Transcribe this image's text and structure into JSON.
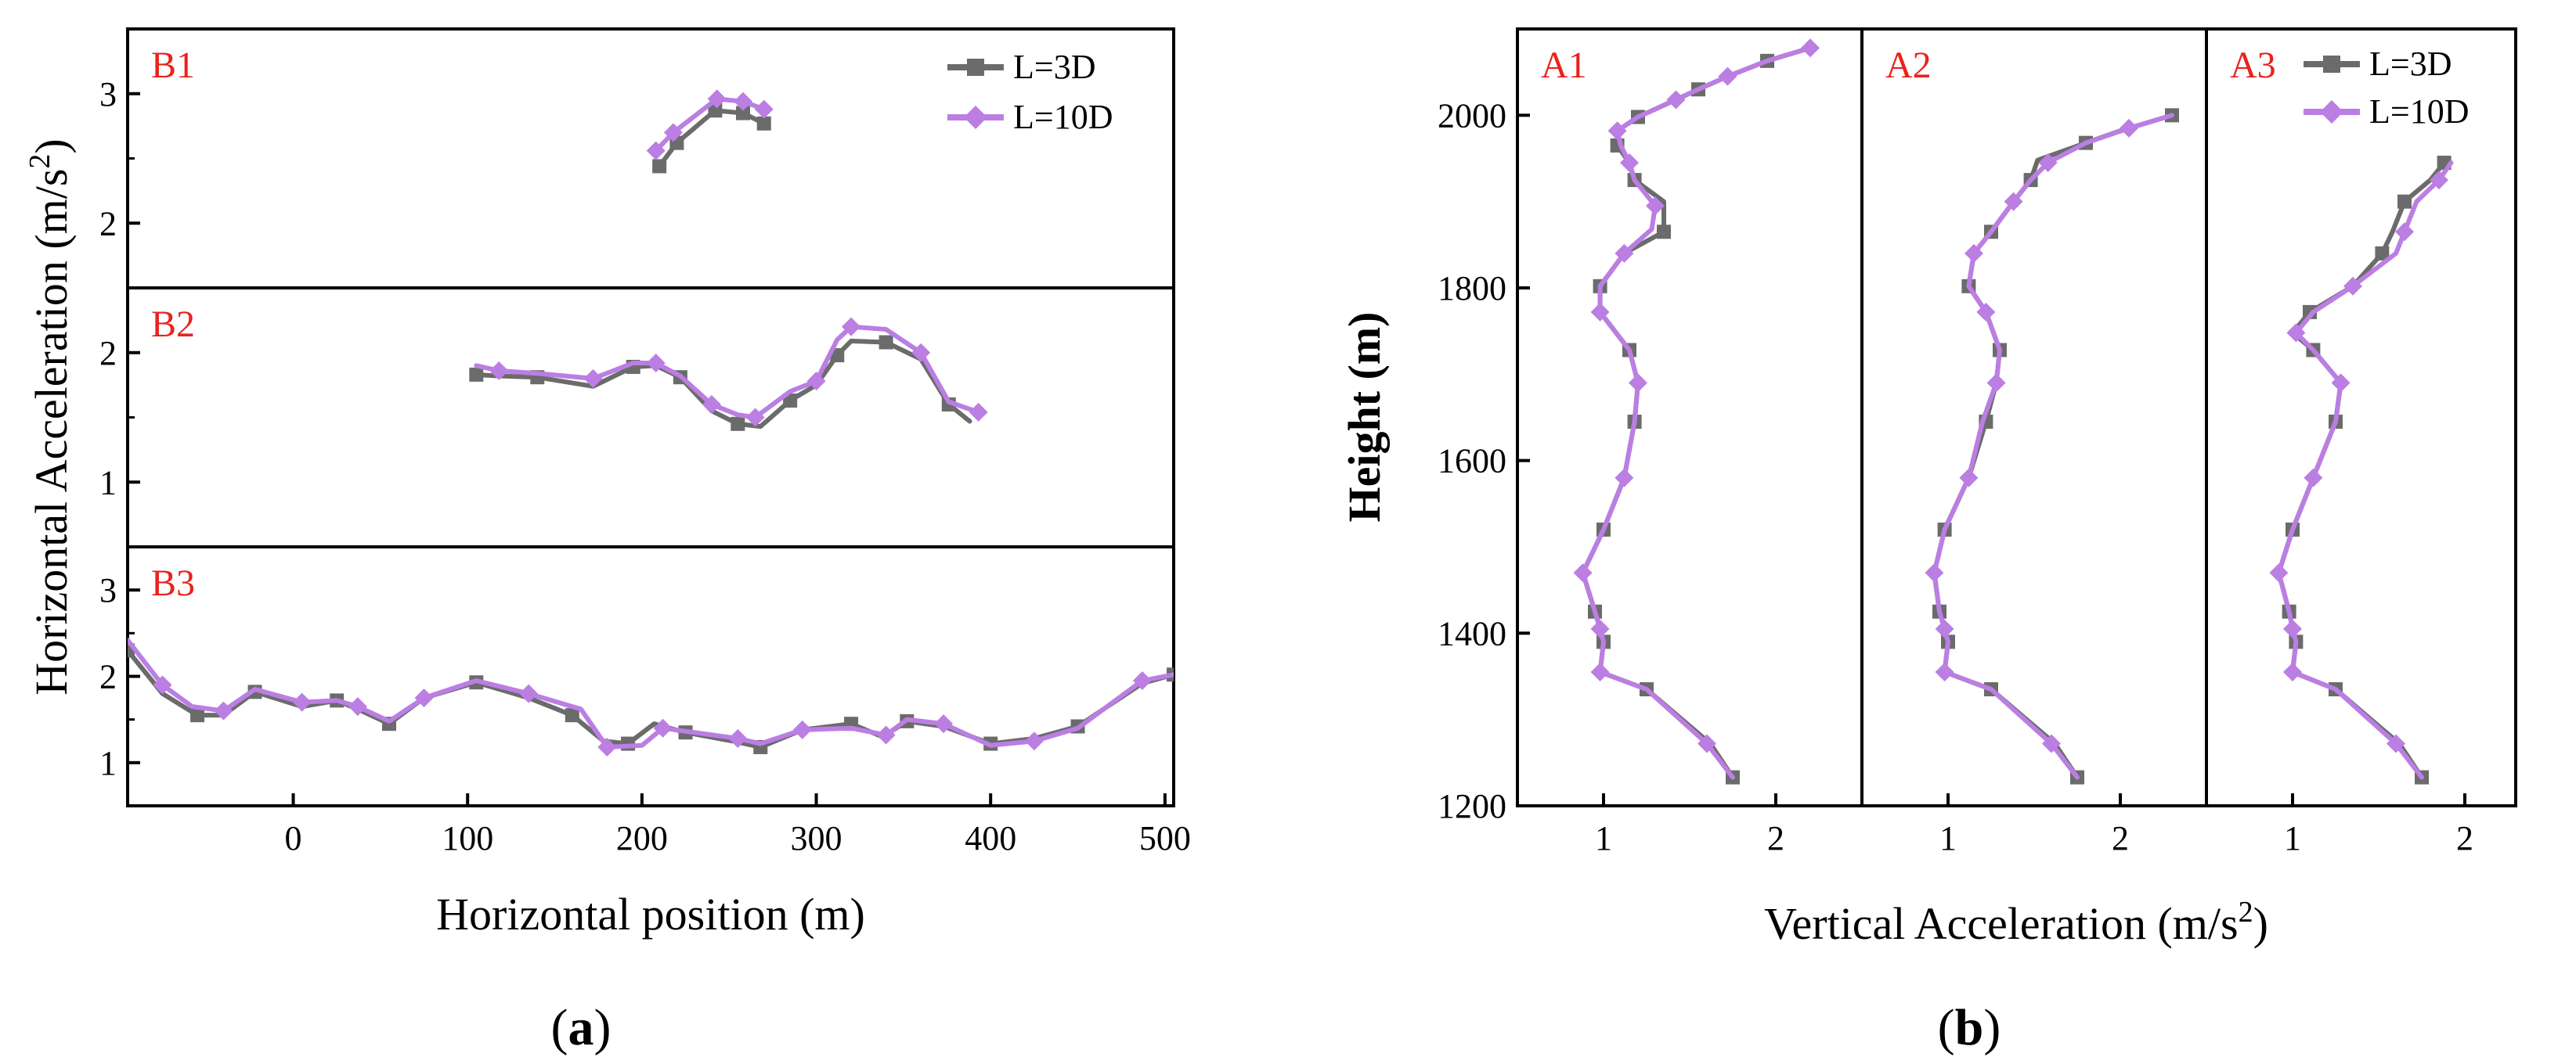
{
  "colors": {
    "l3d": "#6b6b6b",
    "l10d": "#bb7ee3",
    "panel_label": "#e8231c",
    "axis": "#000000"
  },
  "panel_a": {
    "caption": "a",
    "xlabel": "Horizontal position (m)",
    "ylabel_main": "Horizontal Acceleration (m/s",
    "ylabel_sup": "2",
    "ylabel_close": ")"
  },
  "panel_b": {
    "caption": "b",
    "ylabel": "Height (m)",
    "xlabel_main": "Vertical Acceleration (m/s",
    "xlabel_sup": "2",
    "xlabel_close": ")"
  },
  "legend": {
    "l3d": "L=3D",
    "l10d": "L=10D"
  },
  "chart_data": [
    {
      "id": "B1",
      "type": "line",
      "label": "B1",
      "xlim": [
        -95,
        505
      ],
      "ylim": [
        1.5,
        3.5
      ],
      "xticks": [],
      "yticks": [
        2,
        3
      ],
      "legend_position": "top-right",
      "series": [
        {
          "name": "L=3D",
          "x": [
            210,
            220,
            242,
            258,
            270
          ],
          "y": [
            2.44,
            2.62,
            2.87,
            2.85,
            2.77
          ]
        },
        {
          "name": "L=10D",
          "x": [
            208,
            218,
            243,
            258,
            270
          ],
          "y": [
            2.56,
            2.7,
            2.96,
            2.94,
            2.88
          ]
        }
      ]
    },
    {
      "id": "B2",
      "type": "line",
      "label": "B2",
      "xlim": [
        -95,
        505
      ],
      "ylim": [
        0.5,
        2.5
      ],
      "xticks": [],
      "yticks": [
        1,
        2
      ],
      "series": [
        {
          "name": "L=3D",
          "x": [
            105,
            118,
            140,
            172,
            195,
            208,
            222,
            240,
            255,
            268,
            285,
            300,
            312,
            320,
            340,
            360,
            376,
            388
          ],
          "y": [
            1.83,
            1.82,
            1.81,
            1.74,
            1.89,
            1.9,
            1.81,
            1.55,
            1.45,
            1.43,
            1.63,
            1.75,
            1.98,
            2.09,
            2.08,
            1.95,
            1.6,
            1.47
          ]
        },
        {
          "name": "L=10D",
          "x": [
            105,
            118,
            140,
            172,
            195,
            208,
            222,
            240,
            255,
            265,
            285,
            300,
            312,
            320,
            340,
            360,
            376,
            393
          ],
          "y": [
            1.9,
            1.86,
            1.84,
            1.8,
            1.92,
            1.92,
            1.82,
            1.6,
            1.52,
            1.5,
            1.7,
            1.78,
            2.1,
            2.2,
            2.18,
            2.0,
            1.62,
            1.54
          ]
        }
      ]
    },
    {
      "id": "B3",
      "type": "line",
      "label": "B3",
      "xlim": [
        -95,
        505
      ],
      "ylim": [
        0.5,
        3.5
      ],
      "xticks": [
        0,
        100,
        200,
        300,
        400,
        500
      ],
      "yticks": [
        1,
        2,
        3
      ],
      "series": [
        {
          "name": "L=3D",
          "x": [
            -95,
            -75,
            -55,
            -40,
            -22,
            5,
            25,
            37,
            55,
            75,
            105,
            135,
            160,
            178,
            192,
            207,
            225,
            252,
            268,
            292,
            320,
            338,
            352,
            373,
            400,
            425,
            450,
            487,
            505
          ],
          "y": [
            2.3,
            1.8,
            1.55,
            1.55,
            1.82,
            1.65,
            1.72,
            1.62,
            1.45,
            1.75,
            1.93,
            1.75,
            1.55,
            1.25,
            1.22,
            1.45,
            1.35,
            1.25,
            1.18,
            1.38,
            1.45,
            1.3,
            1.48,
            1.42,
            1.22,
            1.28,
            1.42,
            1.92,
            2.02
          ]
        },
        {
          "name": "L=10D",
          "x": [
            -95,
            -75,
            -58,
            -40,
            -22,
            5,
            25,
            37,
            55,
            75,
            105,
            135,
            165,
            180,
            200,
            212,
            230,
            255,
            268,
            292,
            320,
            340,
            352,
            373,
            400,
            425,
            450,
            487,
            505
          ],
          "y": [
            2.42,
            1.9,
            1.65,
            1.6,
            1.85,
            1.7,
            1.72,
            1.65,
            1.48,
            1.75,
            1.95,
            1.8,
            1.62,
            1.18,
            1.2,
            1.4,
            1.35,
            1.28,
            1.22,
            1.38,
            1.4,
            1.32,
            1.5,
            1.45,
            1.2,
            1.25,
            1.4,
            1.95,
            2.02
          ]
        }
      ]
    },
    {
      "id": "A1",
      "type": "line",
      "label": "A1",
      "xlim": [
        0.5,
        2.5
      ],
      "ylim": [
        1200,
        2100
      ],
      "xticks": [
        1,
        2
      ],
      "yticks": [
        1200,
        1400,
        1600,
        1800,
        2000
      ],
      "series": [
        {
          "name": "L=3D",
          "y": [
            1233,
            1272,
            1335,
            1355,
            1390,
            1405,
            1425,
            1470,
            1520,
            1580,
            1645,
            1690,
            1728,
            1772,
            1802,
            1840,
            1865,
            1900,
            1925,
            1945,
            1965,
            1982,
            1998,
            2018,
            2030,
            2045,
            2063,
            2078
          ],
          "x": [
            1.75,
            1.62,
            1.25,
            0.98,
            1.0,
            0.98,
            0.95,
            0.88,
            1.0,
            1.12,
            1.18,
            1.2,
            1.15,
            0.98,
            0.98,
            1.12,
            1.35,
            1.35,
            1.18,
            1.15,
            1.08,
            1.08,
            1.2,
            1.42,
            1.55,
            1.72,
            1.95,
            2.2
          ]
        },
        {
          "name": "L=10D",
          "y": [
            1233,
            1272,
            1335,
            1355,
            1390,
            1405,
            1425,
            1470,
            1520,
            1580,
            1645,
            1690,
            1728,
            1772,
            1802,
            1840,
            1868,
            1895,
            1925,
            1945,
            1965,
            1982,
            1998,
            2018,
            2030,
            2045,
            2063,
            2078
          ],
          "x": [
            1.75,
            1.6,
            1.25,
            0.98,
            1.0,
            0.98,
            0.95,
            0.88,
            1.0,
            1.12,
            1.18,
            1.2,
            1.15,
            0.98,
            0.98,
            1.12,
            1.28,
            1.3,
            1.18,
            1.15,
            1.1,
            1.08,
            1.2,
            1.42,
            1.55,
            1.72,
            1.95,
            2.2
          ]
        }
      ]
    },
    {
      "id": "A2",
      "type": "line",
      "label": "A2",
      "xlim": [
        0.5,
        2.5
      ],
      "ylim": [
        1200,
        2100
      ],
      "xticks": [
        1,
        2
      ],
      "yticks": [],
      "series": [
        {
          "name": "L=3D",
          "y": [
            1233,
            1272,
            1335,
            1355,
            1390,
            1405,
            1425,
            1470,
            1520,
            1580,
            1645,
            1690,
            1728,
            1772,
            1802,
            1840,
            1865,
            1900,
            1925,
            1948,
            1968,
            1982,
            2000
          ],
          "x": [
            1.75,
            1.62,
            1.25,
            0.98,
            1.0,
            0.98,
            0.95,
            0.92,
            0.98,
            1.12,
            1.22,
            1.28,
            1.3,
            1.22,
            1.12,
            1.15,
            1.25,
            1.38,
            1.48,
            1.52,
            1.8,
            2.0,
            2.3
          ]
        },
        {
          "name": "L=10D",
          "y": [
            1233,
            1272,
            1335,
            1355,
            1390,
            1405,
            1425,
            1470,
            1520,
            1580,
            1645,
            1690,
            1728,
            1772,
            1802,
            1840,
            1865,
            1900,
            1925,
            1945,
            1968,
            1985,
            2000
          ],
          "x": [
            1.75,
            1.6,
            1.25,
            0.98,
            1.0,
            0.98,
            0.95,
            0.92,
            0.98,
            1.12,
            1.2,
            1.28,
            1.3,
            1.22,
            1.12,
            1.15,
            1.25,
            1.38,
            1.48,
            1.58,
            1.8,
            2.05,
            2.3
          ]
        }
      ]
    },
    {
      "id": "A3",
      "type": "line",
      "label": "A3",
      "xlim": [
        0.5,
        2.5
      ],
      "ylim": [
        1200,
        2100
      ],
      "xticks": [
        1,
        2
      ],
      "yticks": [],
      "legend_position": "top-right",
      "series": [
        {
          "name": "L=3D",
          "y": [
            1233,
            1272,
            1335,
            1355,
            1390,
            1405,
            1425,
            1470,
            1520,
            1580,
            1645,
            1690,
            1728,
            1748,
            1772,
            1802,
            1840,
            1865,
            1900,
            1925,
            1945
          ],
          "x": [
            1.75,
            1.62,
            1.25,
            1.0,
            1.02,
            1.0,
            0.98,
            0.92,
            1.0,
            1.12,
            1.25,
            1.28,
            1.12,
            1.0,
            1.1,
            1.35,
            1.52,
            1.58,
            1.65,
            1.8,
            1.88
          ]
        },
        {
          "name": "L=10D",
          "y": [
            1233,
            1272,
            1335,
            1355,
            1390,
            1405,
            1425,
            1470,
            1520,
            1580,
            1645,
            1690,
            1728,
            1748,
            1772,
            1802,
            1840,
            1865,
            1900,
            1925,
            1945
          ],
          "x": [
            1.75,
            1.6,
            1.25,
            1.0,
            1.02,
            1.0,
            0.98,
            0.92,
            1.0,
            1.12,
            1.25,
            1.28,
            1.12,
            1.02,
            1.12,
            1.35,
            1.6,
            1.65,
            1.72,
            1.85,
            1.92
          ]
        }
      ]
    }
  ]
}
